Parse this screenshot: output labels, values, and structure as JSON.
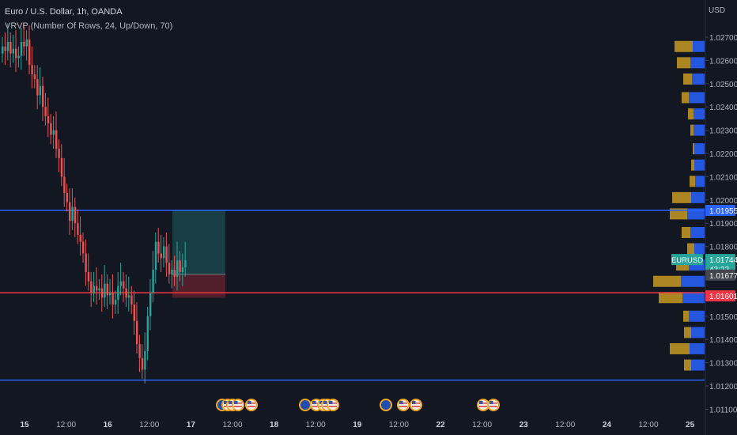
{
  "header": {
    "title": "Euro / U.S. Dollar, 1h, OANDA",
    "indicator": "VRVP (Number Of Rows, 24, Up/Down, 70)"
  },
  "axis": {
    "currency": "USD"
  },
  "colors": {
    "background": "#131722",
    "up": "#26a69a",
    "down": "#ef5350",
    "blue_line": "#2962ff",
    "red_line": "#f23645",
    "vp_up": "#2962ff",
    "vp_down": "#c79a22",
    "target": "#26a69a",
    "stop": "#f23645"
  },
  "chart_data": {
    "type": "candlestick",
    "symbol": "EURUSD",
    "yticks": [
      "1.02700",
      "1.02600",
      "1.02500",
      "1.02400",
      "1.02300",
      "1.02200",
      "1.02100",
      "1.02000",
      "1.01900",
      "1.01800",
      "1.01500",
      "1.01400",
      "1.01300",
      "1.01200",
      "1.01100"
    ],
    "xticks": [
      "15",
      "12:00",
      "16",
      "12:00",
      "17",
      "12:00",
      "18",
      "12:00",
      "19",
      "12:00",
      "22",
      "12:00",
      "23",
      "12:00",
      "24",
      "12:00",
      "25"
    ],
    "ylim": [
      1.0107,
      1.0285
    ],
    "price_labels": [
      {
        "value": "1.01955",
        "color": "#2962ff"
      },
      {
        "symbol": "EURUSD",
        "value": "1.01744",
        "countdown": "42:22",
        "color": "#26a69a"
      },
      {
        "value": "1.01677",
        "color": "#434651"
      },
      {
        "value": "1.01601",
        "color": "#f23645"
      }
    ],
    "horizontal_lines": [
      {
        "price": 1.01955,
        "color": "#2962ff"
      },
      {
        "price": 1.01601,
        "color": "#f23645"
      },
      {
        "price": 1.01225,
        "color": "#2962ff"
      }
    ],
    "position": {
      "entry": 1.0168,
      "target": 1.01955,
      "stop": 1.016
    },
    "candles_close": [
      1.0266,
      1.0264,
      1.0268,
      1.0263,
      1.0265,
      1.0261,
      1.0262,
      1.0268,
      1.0266,
      1.0269,
      1.0258,
      1.0254,
      1.0252,
      1.0245,
      1.0249,
      1.024,
      1.0236,
      1.0233,
      1.0228,
      1.023,
      1.0222,
      1.0218,
      1.021,
      1.0203,
      1.0199,
      1.0191,
      1.0197,
      1.019,
      1.0185,
      1.0182,
      1.0177,
      1.0169,
      1.0165,
      1.016,
      1.0163,
      1.0161,
      1.0162,
      1.0158,
      1.0164,
      1.0159,
      1.016,
      1.0155,
      1.0157,
      1.0163,
      1.0165,
      1.0162,
      1.0158,
      1.0159,
      1.0155,
      1.0148,
      1.0138,
      1.0132,
      1.0127,
      1.0135,
      1.015,
      1.016,
      1.017,
      1.0182,
      1.0177,
      1.0175,
      1.018,
      1.0173,
      1.0168,
      1.017,
      1.0167,
      1.0174,
      1.0169,
      1.0171,
      1.0174
    ],
    "volume_profile": [
      {
        "price": 1.0266,
        "up": 15,
        "down": 23
      },
      {
        "price": 1.0259,
        "up": 18,
        "down": 17
      },
      {
        "price": 1.0252,
        "up": 16,
        "down": 11
      },
      {
        "price": 1.0244,
        "up": 20,
        "down": 9
      },
      {
        "price": 1.0237,
        "up": 14,
        "down": 7
      },
      {
        "price": 1.023,
        "up": 14,
        "down": 4
      },
      {
        "price": 1.0222,
        "up": 13,
        "down": 2
      },
      {
        "price": 1.0215,
        "up": 13,
        "down": 4
      },
      {
        "price": 1.0208,
        "up": 12,
        "down": 7
      },
      {
        "price": 1.0201,
        "up": 17,
        "down": 24
      },
      {
        "price": 1.0194,
        "up": 22,
        "down": 22
      },
      {
        "price": 1.0186,
        "up": 18,
        "down": 11
      },
      {
        "price": 1.0179,
        "up": 13,
        "down": 9
      },
      {
        "price": 1.0172,
        "up": 20,
        "down": 16
      },
      {
        "price": 1.0165,
        "up": 30,
        "down": 35
      },
      {
        "price": 1.0158,
        "up": 28,
        "down": 30
      },
      {
        "price": 1.015,
        "up": 20,
        "down": 7
      },
      {
        "price": 1.0143,
        "up": 17,
        "down": 9
      },
      {
        "price": 1.0136,
        "up": 19,
        "down": 25
      },
      {
        "price": 1.0129,
        "up": 17,
        "down": 9
      }
    ],
    "events": [
      {
        "x": 281,
        "flag": "eu"
      },
      {
        "x": 288,
        "flag": "us"
      },
      {
        "x": 294,
        "flag": "us"
      },
      {
        "x": 301,
        "flag": "us"
      },
      {
        "x": 318,
        "flag": "us"
      },
      {
        "x": 386,
        "flag": "eu"
      },
      {
        "x": 400,
        "flag": "us"
      },
      {
        "x": 409,
        "flag": "us"
      },
      {
        "x": 414,
        "flag": "us"
      },
      {
        "x": 421,
        "flag": "us"
      },
      {
        "x": 488,
        "flag": "eu"
      },
      {
        "x": 510,
        "flag": "us"
      },
      {
        "x": 526,
        "flag": "us"
      },
      {
        "x": 611,
        "flag": "us"
      },
      {
        "x": 624,
        "flag": "us"
      }
    ]
  }
}
